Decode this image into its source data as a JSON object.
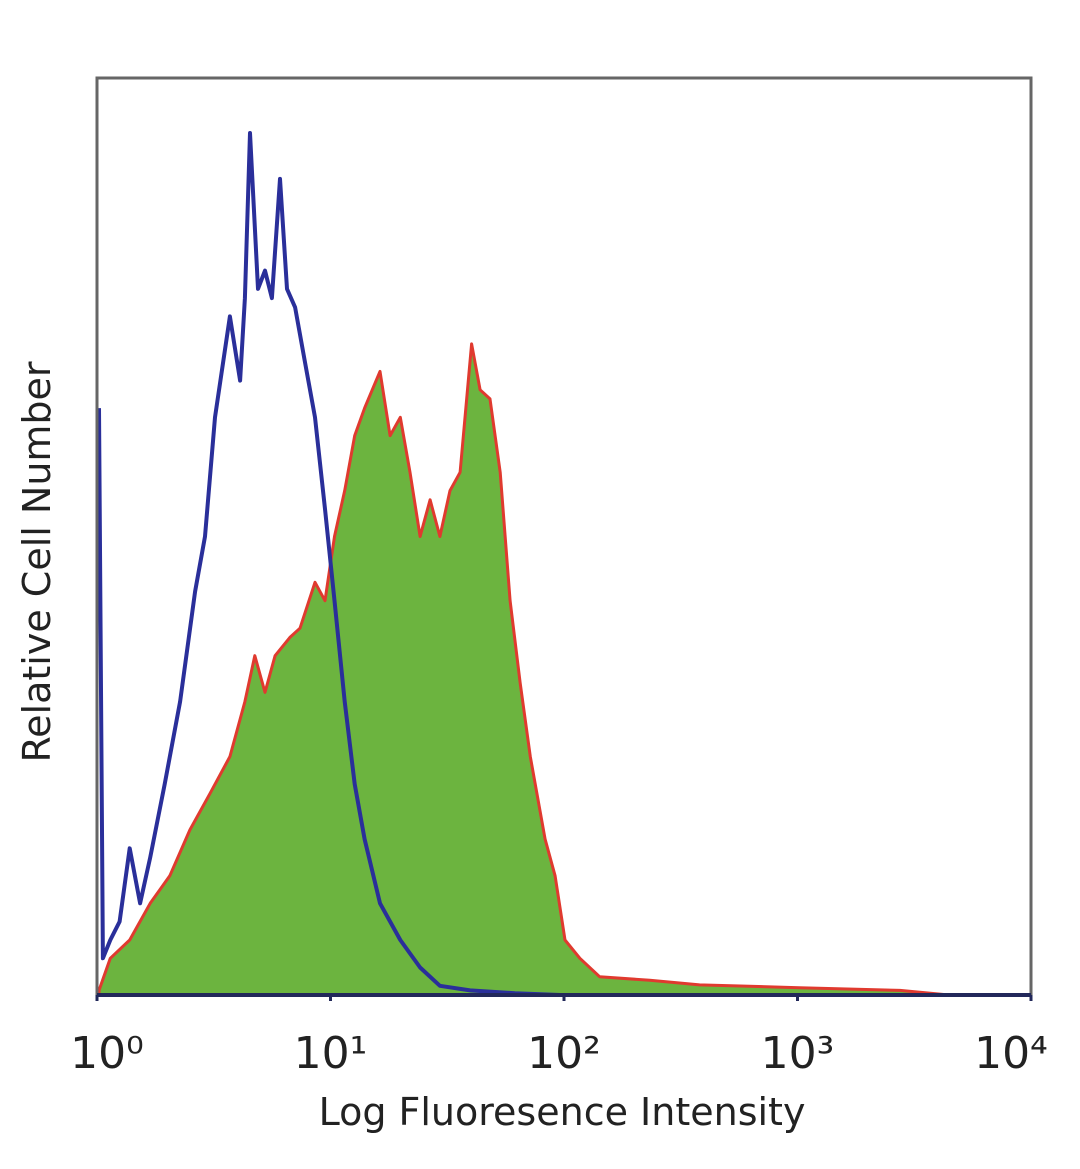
{
  "chart_data": {
    "type": "area",
    "xlabel": "Log Fluoresence Intensity",
    "ylabel": "Relative Cell Number",
    "xscale": "log",
    "xlim": [
      1,
      10000
    ],
    "ylim": [
      0,
      100
    ],
    "xticks": [
      {
        "value": 1,
        "label": "10⁰"
      },
      {
        "value": 10,
        "label": "10¹"
      },
      {
        "value": 100,
        "label": "10²"
      },
      {
        "value": 1000,
        "label": "10³"
      },
      {
        "value": 10000,
        "label": "10⁴"
      }
    ],
    "series": [
      {
        "color": "#6cb43f",
        "edgecolor": "#e03a2f",
        "fill": true,
        "x": [
          1.02,
          1.14,
          1.38,
          1.69,
          2.05,
          2.5,
          3.05,
          3.71,
          4.3,
          4.74,
          5.24,
          5.79,
          6.7,
          7.4,
          8.58,
          9.47,
          10.4,
          11.5,
          12.7,
          14.0,
          16.3,
          18.0,
          19.9,
          21.9,
          24.2,
          26.7,
          29.4,
          32.5,
          35.9,
          40.2,
          43.7,
          48.2,
          53.3,
          58.8,
          64.9,
          71.7,
          83.0,
          91.6,
          101,
          117,
          142,
          233,
          381,
          1020,
          2750,
          4450,
          10000
        ],
        "values": [
          0.5,
          4,
          6,
          10,
          13,
          18,
          22,
          26,
          32,
          37,
          33,
          37,
          39,
          40,
          45,
          43,
          50,
          55,
          61,
          64,
          68,
          61,
          63,
          57,
          50,
          54,
          50,
          55,
          57,
          71,
          66,
          65,
          57,
          43,
          34,
          26,
          17,
          13,
          6,
          4,
          2,
          1.6,
          1.1,
          0.8,
          0.5,
          0,
          0
        ]
      },
      {
        "color": "#2a2f9a",
        "fill": false,
        "x": [
          1.02,
          1.06,
          1.14,
          1.25,
          1.38,
          1.53,
          1.69,
          1.95,
          2.27,
          2.63,
          2.9,
          3.2,
          3.71,
          4.1,
          4.3,
          4.52,
          4.89,
          5.24,
          5.61,
          6.08,
          6.51,
          7.05,
          7.78,
          8.58,
          9.47,
          10.4,
          11.5,
          12.7,
          14.0,
          16.3,
          19.9,
          24.2,
          29.4,
          39.6,
          61.7,
          96.1,
          10000
        ],
        "values": [
          64,
          4,
          6,
          8,
          16,
          10,
          15,
          23,
          32,
          44,
          50,
          63,
          74,
          67,
          76,
          94,
          77,
          79,
          76,
          89,
          77,
          75,
          69,
          63,
          53,
          43,
          32,
          23,
          17,
          10,
          6,
          3,
          1,
          0.5,
          0.2,
          0,
          0
        ]
      }
    ]
  }
}
